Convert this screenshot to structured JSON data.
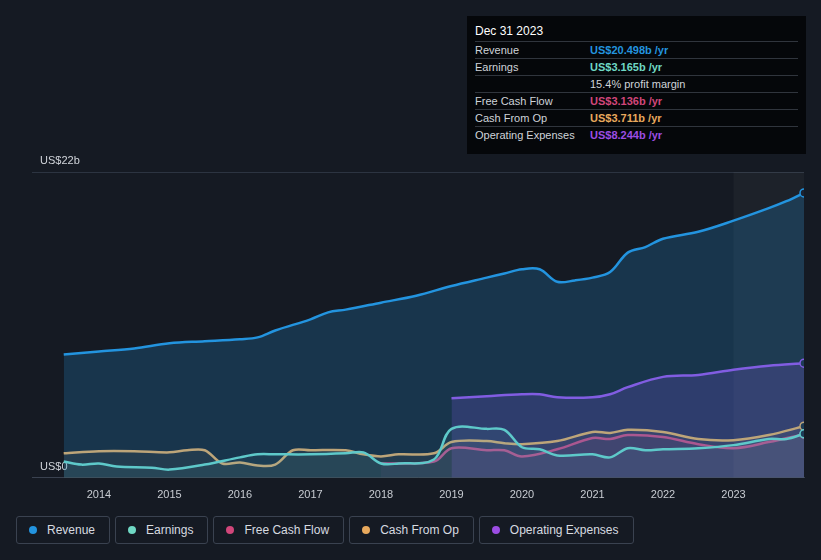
{
  "chart_data": {
    "type": "line",
    "xlim": [
      2013.05,
      2024.0
    ],
    "xticks": [
      2014,
      2015,
      2016,
      2017,
      2018,
      2019,
      2020,
      2021,
      2022,
      2023
    ],
    "ylim": [
      0,
      22
    ],
    "yticks": [
      {
        "value": 0,
        "label": "US$0"
      },
      {
        "value": 22,
        "label": "US$22b"
      }
    ],
    "grid": true,
    "legend": "bottom",
    "series": [
      {
        "name": "Revenue",
        "color": "#2394df",
        "x": [
          2013.5,
          2014.0,
          2014.5,
          2015.0,
          2015.5,
          2016.0,
          2016.25,
          2016.5,
          2017.0,
          2017.25,
          2017.5,
          2018.0,
          2018.5,
          2019.0,
          2019.5,
          2019.75,
          2020.0,
          2020.25,
          2020.5,
          2020.75,
          2021.0,
          2021.25,
          2021.5,
          2021.75,
          2022.0,
          2022.5,
          2023.0,
          2023.5,
          2023.75,
          2024.0
        ],
        "values": [
          8.87,
          9.09,
          9.31,
          9.68,
          9.82,
          9.97,
          10.1,
          10.6,
          11.4,
          11.9,
          12.1,
          12.6,
          13.1,
          13.8,
          14.4,
          14.7,
          15.0,
          15.0,
          14.1,
          14.2,
          14.4,
          14.8,
          16.2,
          16.6,
          17.2,
          17.7,
          18.5,
          19.4,
          19.9,
          20.498
        ]
      },
      {
        "name": "Earnings",
        "color": "#6fd8c4",
        "x": [
          2013.5,
          2013.75,
          2014.0,
          2014.25,
          2014.75,
          2015.0,
          2015.5,
          2016.0,
          2016.25,
          2016.5,
          2017.0,
          2017.5,
          2017.75,
          2018.0,
          2018.25,
          2018.75,
          2019.0,
          2019.5,
          2019.75,
          2020.0,
          2020.25,
          2020.5,
          2021.0,
          2021.25,
          2021.5,
          2021.75,
          2022.0,
          2022.5,
          2023.0,
          2023.5,
          2023.75,
          2024.0
        ],
        "values": [
          1.17,
          0.95,
          1.03,
          0.81,
          0.73,
          0.59,
          0.95,
          1.47,
          1.69,
          1.69,
          1.69,
          1.76,
          1.83,
          1.03,
          1.03,
          1.32,
          3.52,
          3.52,
          3.45,
          2.2,
          2.05,
          1.61,
          1.69,
          1.47,
          2.13,
          1.98,
          2.05,
          2.13,
          2.35,
          2.79,
          2.79,
          3.165
        ]
      },
      {
        "name": "Free Cash Flow",
        "color": "#d1467a",
        "x": [
          2018.0,
          2018.75,
          2019.0,
          2019.5,
          2019.75,
          2020.0,
          2020.5,
          2021.0,
          2021.25,
          2021.5,
          2022.0,
          2022.5,
          2023.0,
          2023.5,
          2024.0
        ],
        "values": [
          1.03,
          1.17,
          2.13,
          1.98,
          1.98,
          1.54,
          2.05,
          2.86,
          2.79,
          3.08,
          2.93,
          2.42,
          2.13,
          2.57,
          3.136
        ]
      },
      {
        "name": "Cash From Op",
        "color": "#e8a95d",
        "x": [
          2013.5,
          2014.0,
          2014.5,
          2015.0,
          2015.25,
          2015.5,
          2015.75,
          2016.0,
          2016.25,
          2016.5,
          2016.75,
          2017.0,
          2017.5,
          2017.75,
          2018.0,
          2018.25,
          2018.75,
          2019.0,
          2019.5,
          2019.75,
          2020.0,
          2020.5,
          2021.0,
          2021.25,
          2021.5,
          2022.0,
          2022.5,
          2023.0,
          2023.5,
          2024.0
        ],
        "values": [
          1.76,
          1.91,
          1.91,
          1.83,
          1.98,
          1.98,
          1.03,
          1.1,
          0.88,
          0.95,
          1.98,
          1.98,
          1.98,
          1.69,
          1.54,
          1.69,
          1.76,
          2.57,
          2.64,
          2.49,
          2.42,
          2.64,
          3.3,
          3.23,
          3.45,
          3.3,
          2.79,
          2.71,
          3.08,
          3.711
        ]
      },
      {
        "name": "Operating Expenses",
        "color": "#9c4de3",
        "x": [
          2019.0,
          2019.5,
          2020.0,
          2020.25,
          2020.5,
          2021.0,
          2021.25,
          2021.5,
          2022.0,
          2022.5,
          2023.0,
          2023.5,
          2024.0
        ],
        "values": [
          5.72,
          5.87,
          6.01,
          6.01,
          5.79,
          5.79,
          6.01,
          6.52,
          7.26,
          7.4,
          7.77,
          8.06,
          8.244
        ]
      }
    ],
    "annotation": {
      "title": "Dec 31 2023",
      "rows": [
        {
          "label": "Revenue",
          "value": "US$20.498b /yr"
        },
        {
          "label": "Earnings",
          "value": "US$3.165b /yr"
        },
        {
          "text": "15.4% profit margin"
        },
        {
          "label": "Free Cash Flow",
          "value": "US$3.136b /yr"
        },
        {
          "label": "Cash From Op",
          "value": "US$3.711b /yr"
        },
        {
          "label": "Operating Expenses",
          "value": "US$8.244b /yr"
        }
      ]
    }
  }
}
